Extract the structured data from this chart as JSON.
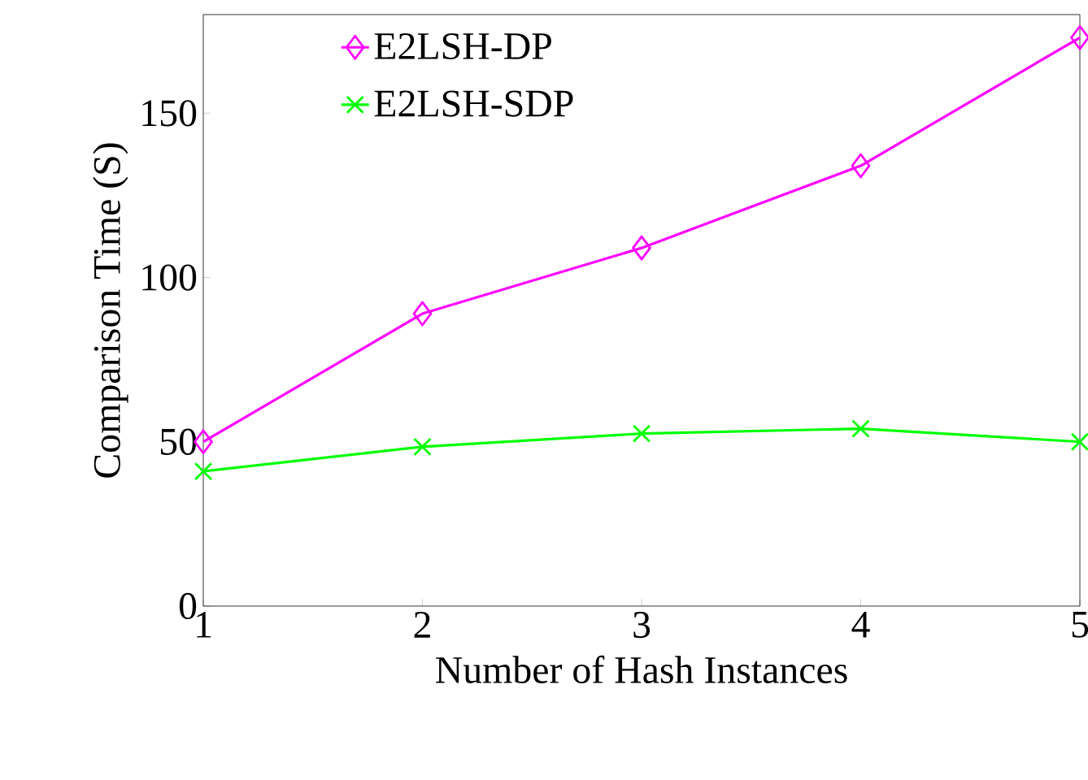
{
  "chart_data": {
    "type": "line",
    "xlabel": "Number of Hash Instances",
    "ylabel": "Comparison Time (S)",
    "x": [
      1,
      2,
      3,
      4,
      5
    ],
    "xlim": [
      1,
      5
    ],
    "xticks": [
      1,
      2,
      3,
      4,
      5
    ],
    "ylim": [
      0,
      180
    ],
    "yticks": [
      0,
      50,
      100,
      150
    ],
    "grid": false,
    "legend": "top left",
    "line_style": "solid",
    "series": [
      {
        "name": "E2LSH-DP",
        "color": "#ff00ff",
        "marker": "diamond",
        "values": [
          50,
          89,
          109,
          134,
          173
        ]
      },
      {
        "name": "E2LSH-SDP",
        "color": "#00ff00",
        "marker": "cross",
        "values": [
          41,
          48.5,
          52.5,
          54,
          50
        ]
      }
    ]
  }
}
